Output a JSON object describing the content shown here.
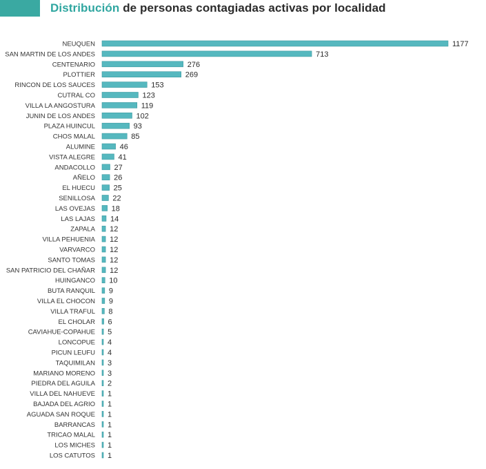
{
  "header": {
    "title_accent": "Distribución",
    "title_rest": " de personas contagiadas activas por localidad"
  },
  "colors": {
    "accent": "#2fa6a0",
    "bar": "#56b8bf",
    "bar_edge": "#3d9aa1"
  },
  "chart_data": {
    "type": "bar",
    "orientation": "horizontal",
    "title": "Distribución de personas contagiadas activas por localidad",
    "xlabel": "",
    "ylabel": "",
    "xlim": [
      0,
      1177
    ],
    "grid": false,
    "categories": [
      "NEUQUEN",
      "SAN MARTIN DE LOS ANDES",
      "CENTENARIO",
      "PLOTTIER",
      "RINCON DE LOS SAUCES",
      "CUTRAL CO",
      "VILLA LA ANGOSTURA",
      "JUNIN DE LOS ANDES",
      "PLAZA HUINCUL",
      "CHOS MALAL",
      "ALUMINE",
      "VISTA ALEGRE",
      "ANDACOLLO",
      "AÑELO",
      "EL HUECU",
      "SENILLOSA",
      "LAS OVEJAS",
      "LAS LAJAS",
      "ZAPALA",
      "VILLA PEHUENIA",
      "VARVARCO",
      "SANTO TOMAS",
      "SAN PATRICIO DEL CHAÑAR",
      "HUINGANCO",
      "BUTA RANQUIL",
      "VILLA EL CHOCON",
      "VILLA TRAFUL",
      "EL CHOLAR",
      "CAVIAHUE-COPAHUE",
      "LONCOPUE",
      "PICUN LEUFU",
      "TAQUIMILAN",
      "MARIANO MORENO",
      "PIEDRA DEL AGUILA",
      "VILLA DEL NAHUEVE",
      "BAJADA DEL AGRIO",
      "AGUADA SAN ROQUE",
      "BARRANCAS",
      "TRICAO MALAL",
      "LOS MICHES",
      "LOS CATUTOS"
    ],
    "values": [
      1177,
      713,
      276,
      269,
      153,
      123,
      119,
      102,
      93,
      85,
      46,
      41,
      27,
      26,
      25,
      22,
      18,
      14,
      12,
      12,
      12,
      12,
      12,
      10,
      9,
      9,
      8,
      6,
      5,
      4,
      4,
      3,
      3,
      2,
      1,
      1,
      1,
      1,
      1,
      1,
      1
    ]
  }
}
